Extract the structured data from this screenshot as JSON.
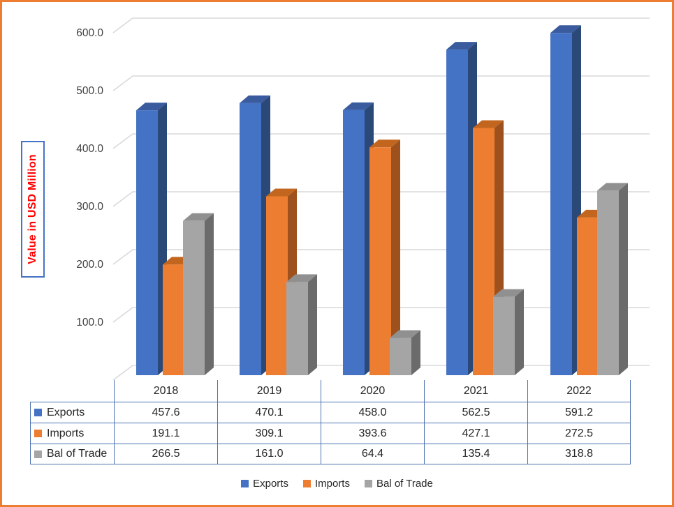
{
  "frame": {
    "border_color": "#ED7D31",
    "background": "#FFFFFF"
  },
  "chart_data": {
    "type": "bar",
    "subtype": "3d-clustered-column",
    "title": "",
    "ylabel": "Value in USD Million",
    "ylabel_color": "#FF0000",
    "ylabel_box_border": "#4472C4",
    "categories": [
      "2018",
      "2019",
      "2020",
      "2021",
      "2022"
    ],
    "series": [
      {
        "name": "Exports",
        "values": [
          457.6,
          470.1,
          458.0,
          562.5,
          591.2
        ],
        "color": "#4472C4",
        "top_color": "#3A5C9E",
        "side_color": "#2A4878"
      },
      {
        "name": "Imports",
        "values": [
          191.1,
          309.1,
          393.6,
          427.1,
          272.5
        ],
        "color": "#ED7D31",
        "top_color": "#C2661F",
        "side_color": "#9E511C"
      },
      {
        "name": "Bal of Trade",
        "values": [
          266.5,
          161.0,
          64.4,
          135.4,
          318.8
        ],
        "color": "#A5A5A5",
        "top_color": "#909090",
        "side_color": "#6B6B6B"
      }
    ],
    "y_axis": {
      "min": 0,
      "max": 600,
      "step": 100,
      "tick_labels": [
        "-",
        "100.0",
        "200.0",
        "300.0",
        "400.0",
        "500.0",
        "600.0"
      ],
      "tick_color": "#3F3F3F"
    },
    "grid_on": true,
    "gridline_color": "#D9D9D9",
    "legend_position": "bottom",
    "legend_entries": [
      "Exports",
      "Imports",
      "Bal of Trade"
    ],
    "data_table": {
      "shown": true,
      "show_legend_keys": true,
      "value_decimals": 1,
      "border_color": "#4C72B0"
    }
  }
}
